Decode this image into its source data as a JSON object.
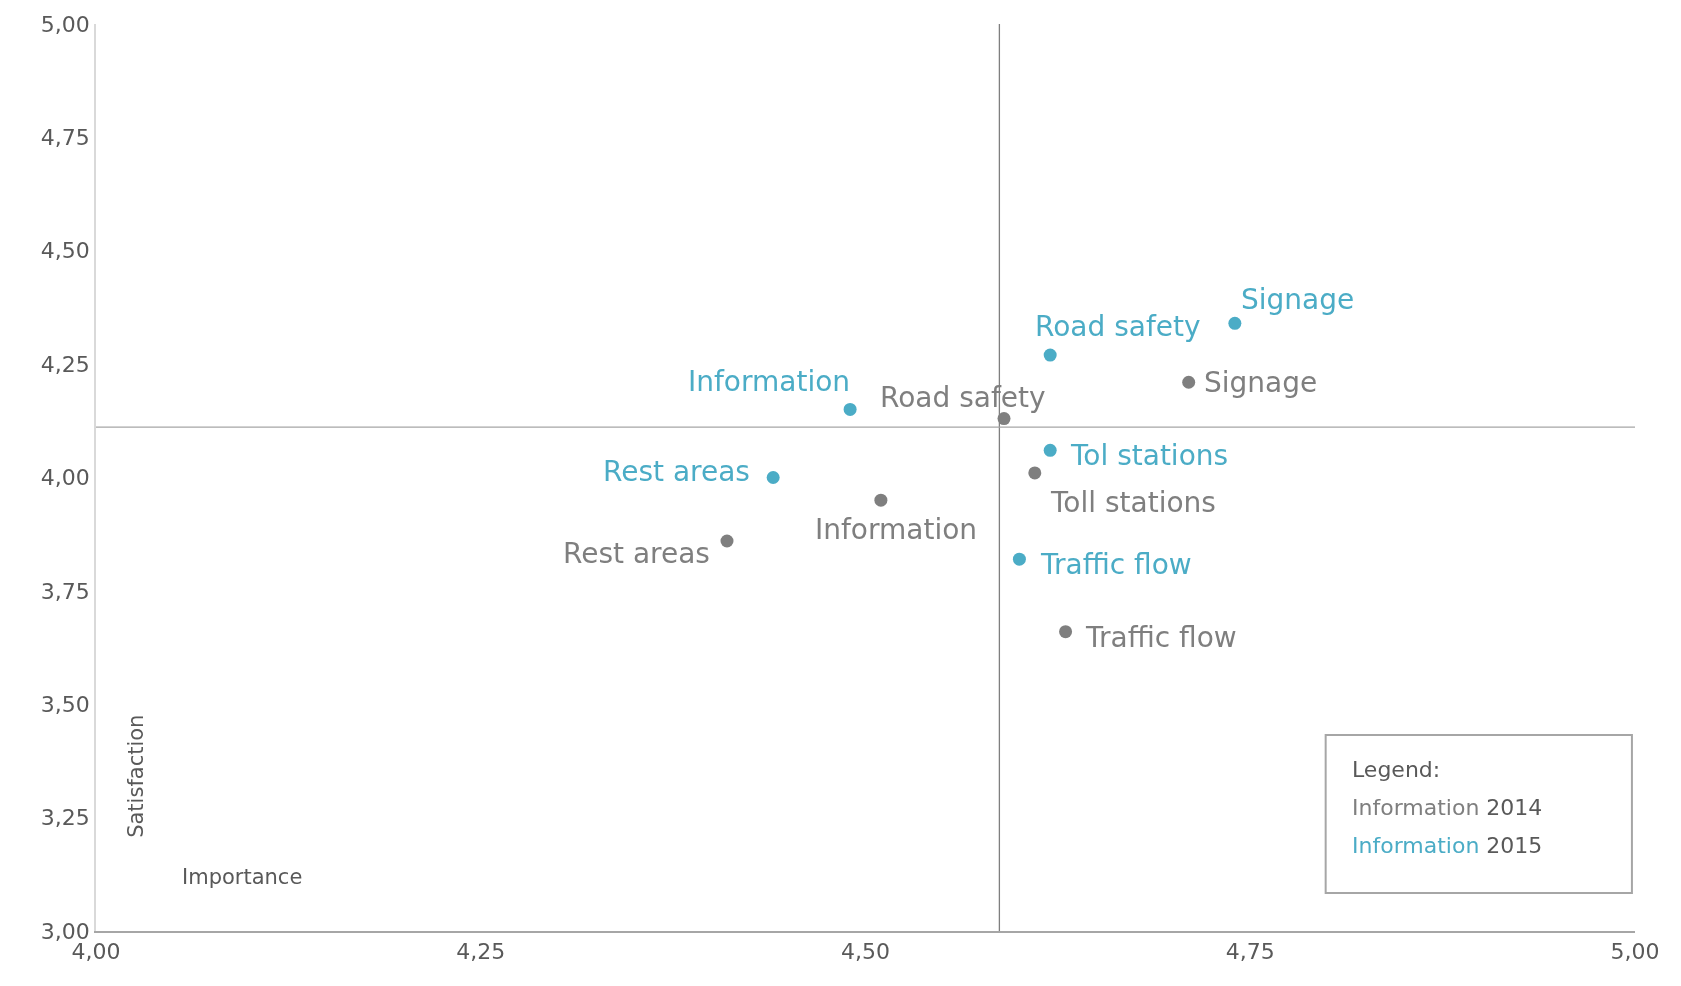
{
  "chart_data": {
    "type": "scatter",
    "xlabel": "Importance",
    "ylabel": "Satisfaction",
    "xlim": [
      4,
      5
    ],
    "ylim": [
      3,
      5
    ],
    "xticks": [
      {
        "value": 4,
        "label": "4,00"
      },
      {
        "value": 4.25,
        "label": "4,25"
      },
      {
        "value": 4.5,
        "label": "4,50"
      },
      {
        "value": 4.75,
        "label": "4,75"
      },
      {
        "value": 5,
        "label": "5,00"
      }
    ],
    "yticks": [
      {
        "value": 3,
        "label": "3,00"
      },
      {
        "value": 3.25,
        "label": "3,25"
      },
      {
        "value": 3.5,
        "label": "3,50"
      },
      {
        "value": 3.75,
        "label": "3,75"
      },
      {
        "value": 4,
        "label": "4,00"
      },
      {
        "value": 4.25,
        "label": "4,25"
      },
      {
        "value": 4.5,
        "label": "4,50"
      },
      {
        "value": 4.75,
        "label": "4,75"
      },
      {
        "value": 5,
        "label": "5,00"
      }
    ],
    "marker": "circle",
    "series": [
      {
        "color": "#7f7f7f",
        "x": [
          4.59,
          4.71,
          4.61,
          4.51,
          4.41,
          4.63
        ],
        "values": [
          4.13,
          4.21,
          4.01,
          3.95,
          3.86,
          3.66
        ]
      },
      {
        "color": "#4bacc6",
        "x": [
          4.74,
          4.62,
          4.49,
          4.44,
          4.62,
          4.6
        ],
        "values": [
          4.34,
          4.27,
          4.15,
          4.0,
          4.06,
          3.82
        ]
      }
    ],
    "ref_lines": [
      {
        "axis": "x",
        "value": 4.587,
        "color": "#7f7f7f"
      },
      {
        "axis": "y",
        "value": 4.111,
        "color": "#a6a6a6"
      }
    ],
    "annotations": [
      {
        "text": "Road safety",
        "x": 4.59,
        "y": 4.13
      },
      {
        "text": "Signage",
        "x": 4.71,
        "y": 4.21
      },
      {
        "text": "Toll stations",
        "x": 4.61,
        "y": 4.01
      },
      {
        "text": "Information",
        "x": 4.51,
        "y": 3.95
      },
      {
        "text": "Rest areas",
        "x": 4.41,
        "y": 3.86
      },
      {
        "text": "Traffic flow",
        "x": 4.63,
        "y": 3.66
      },
      {
        "text": "Signage",
        "x": 4.74,
        "y": 4.34
      },
      {
        "text": "Road safety",
        "x": 4.62,
        "y": 4.27
      },
      {
        "text": "Information",
        "x": 4.49,
        "y": 4.15
      },
      {
        "text": "Rest areas",
        "x": 4.44,
        "y": 4.0
      },
      {
        "text": "Tol stations",
        "x": 4.62,
        "y": 4.06
      },
      {
        "text": "Traffic flow",
        "x": 4.6,
        "y": 3.82
      },
      "Legend:",
      "Information 2014",
      "Information 2015"
    ]
  }
}
